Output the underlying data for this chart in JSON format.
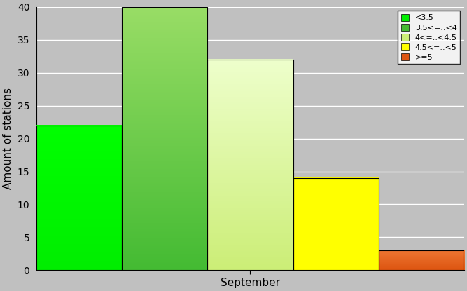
{
  "bars": [
    {
      "label": "<3.5",
      "value": 22,
      "color": "#00ff00",
      "color_top": "#00ff00"
    },
    {
      "label": "3.5<=..<4",
      "value": 40,
      "color": "#55cc44",
      "color_top": "#88dd44"
    },
    {
      "label": "4<=..<4.5",
      "value": 32,
      "color": "#ddee88",
      "color_top": "#eeffcc"
    },
    {
      "label": "4.5<=..<5",
      "value": 14,
      "color": "#ffff00",
      "color_top": "#ffff00"
    },
    {
      "label": ">=5",
      "value": 3,
      "color": "#dd6622",
      "color_top": "#dd6622"
    }
  ],
  "ylabel": "Amount of stations",
  "xlabel": "September",
  "ylim": [
    0,
    40
  ],
  "yticks": [
    0,
    5,
    10,
    15,
    20,
    25,
    30,
    35,
    40
  ],
  "background_color": "#c0c0c0",
  "plot_bg_color": "#c0c0c0",
  "figwidth": 6.67,
  "figheight": 4.15,
  "dpi": 100
}
